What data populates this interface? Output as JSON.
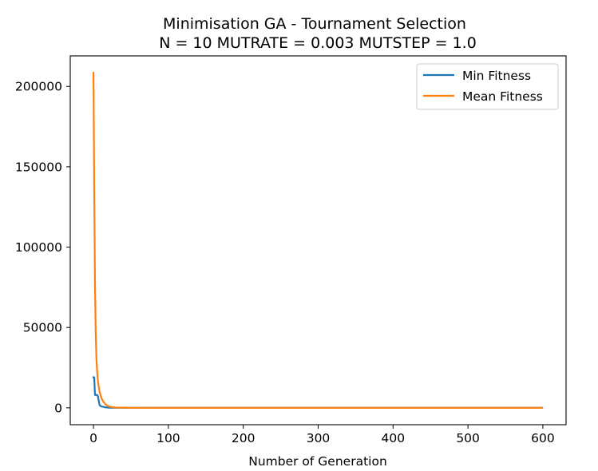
{
  "chart_data": {
    "type": "line",
    "title": "Minimisation GA - Tournament Selection",
    "subtitle": "N = 10 MUTRATE = 0.003 MUTSTEP = 1.0",
    "xlabel": "Number of Generation",
    "ylabel": "",
    "xlim": [
      -31,
      631
    ],
    "ylim": [
      -10500,
      219000
    ],
    "xticks": [
      0,
      100,
      200,
      300,
      400,
      500,
      600
    ],
    "yticks": [
      0,
      50000,
      100000,
      150000,
      200000
    ],
    "legend_position": "top-right",
    "series": [
      {
        "name": "Min Fitness",
        "color": "#1f77b4",
        "x": [
          0,
          1,
          2,
          3,
          4,
          5,
          6,
          7,
          8,
          9,
          10,
          11,
          12,
          13,
          14,
          15,
          16,
          17,
          18,
          19,
          20,
          25,
          30,
          40,
          60,
          100,
          200,
          300,
          400,
          500,
          599
        ],
        "y": [
          19000,
          19000,
          8000,
          8000,
          8000,
          8000,
          7000,
          4500,
          2000,
          1200,
          1000,
          800,
          700,
          600,
          500,
          400,
          300,
          250,
          200,
          150,
          100,
          50,
          20,
          10,
          5,
          2,
          1,
          1,
          1,
          1,
          1
        ]
      },
      {
        "name": "Mean Fitness",
        "color": "#ff7f0e",
        "x": [
          0,
          1,
          2,
          3,
          4,
          5,
          6,
          7,
          8,
          9,
          10,
          11,
          12,
          13,
          14,
          15,
          16,
          18,
          20,
          22,
          25,
          30,
          35,
          40,
          50,
          70,
          100,
          200,
          300,
          400,
          500,
          599
        ],
        "y": [
          208500,
          135000,
          78000,
          46000,
          30000,
          22000,
          16500,
          13000,
          10500,
          8500,
          7000,
          5800,
          4800,
          4000,
          3300,
          2700,
          2200,
          1500,
          1000,
          700,
          400,
          200,
          100,
          60,
          30,
          10,
          5,
          2,
          1,
          1,
          1,
          1
        ]
      }
    ]
  }
}
